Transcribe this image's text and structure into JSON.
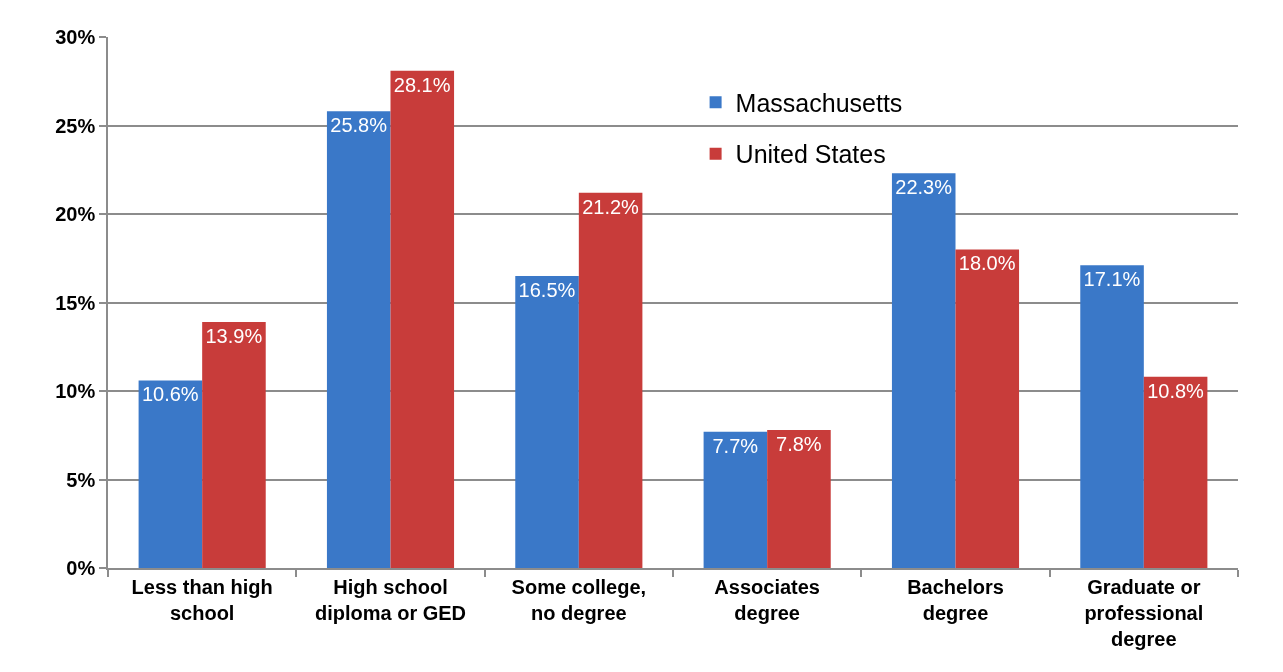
{
  "chart_data": {
    "type": "bar",
    "categories": [
      "Less than high school",
      "High school diploma or GED",
      "Some college, no degree",
      "Associates degree",
      "Bachelors degree",
      "Graduate or professional degree"
    ],
    "series": [
      {
        "name": "Massachusetts",
        "color": "#3a78c8",
        "values": [
          10.6,
          25.8,
          16.5,
          7.7,
          22.3,
          17.1
        ],
        "value_labels": [
          "10.6%",
          "25.8%",
          "16.5%",
          "7.7%",
          "22.3%",
          "17.1%"
        ]
      },
      {
        "name": "United States",
        "color": "#c83c3a",
        "values": [
          13.9,
          28.1,
          21.2,
          7.8,
          18.0,
          10.8
        ],
        "value_labels": [
          "13.9%",
          "28.1%",
          "21.2%",
          "7.8%",
          "18.0%",
          "10.8%"
        ]
      }
    ],
    "ylim": [
      0,
      30
    ],
    "yticks": [
      {
        "value": 0,
        "label": "0%"
      },
      {
        "value": 5,
        "label": "5%"
      },
      {
        "value": 10,
        "label": "10%"
      },
      {
        "value": 15,
        "label": "15%"
      },
      {
        "value": 20,
        "label": "20%"
      },
      {
        "value": 25,
        "label": "25%"
      },
      {
        "value": 30,
        "label": "30%"
      }
    ],
    "grid": "y",
    "legend": "top"
  }
}
